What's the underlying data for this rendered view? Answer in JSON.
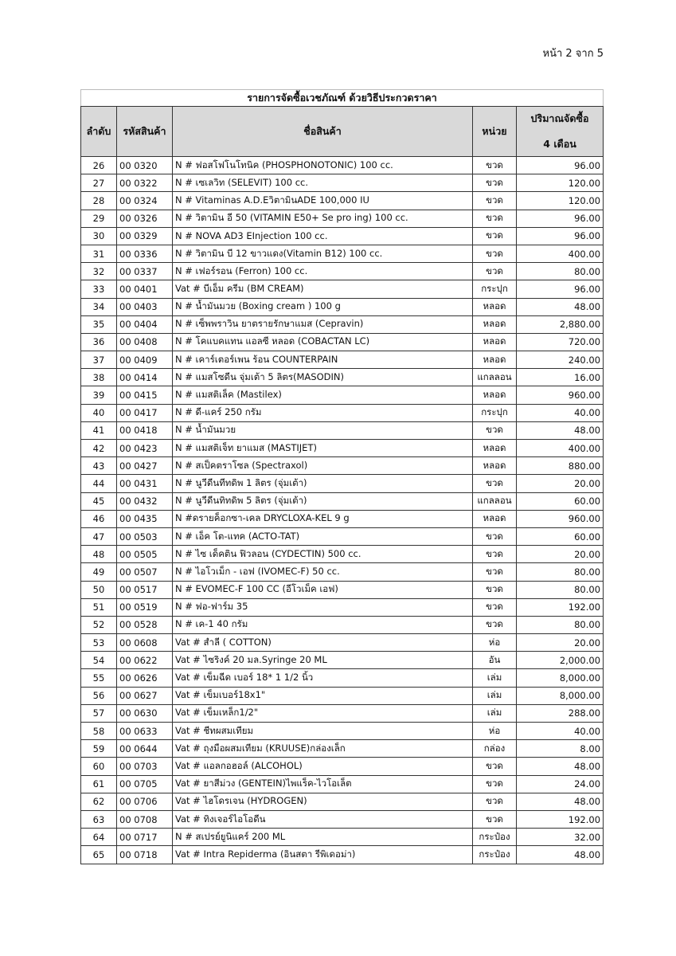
{
  "page_number": "หน้า 2 จาก 5",
  "table_title": "รายการจัดซื้อเวชภัณฑ์ ด้วยวิธีประกวดราคา",
  "headers": {
    "no": "ลำดับ",
    "code": "รหัสสินค้า",
    "name": "ชื่อสินค้า",
    "unit": "หน่วย",
    "qty_line1": "ปริมาณจัดซื้อ",
    "qty_line2": "4 เดือน"
  },
  "rows": [
    [
      "26",
      "00 0320",
      "N # ฟอสโฟโนโทนิค (PHOSPHONOTONIC) 100 cc.",
      "ขวด",
      "96.00"
    ],
    [
      "27",
      "00 0322",
      "N # เซเลวิท (SELEVIT) 100 cc.",
      "ขวด",
      "120.00"
    ],
    [
      "28",
      "00 0324",
      "N # Vitaminas A.D.EวิตามินADE 100,000 IU",
      "ขวด",
      "120.00"
    ],
    [
      "29",
      "00 0326",
      "N # วิตามิน อี 50 (VITAMIN E50+ Se pro ing) 100 cc.",
      "ขวด",
      "96.00"
    ],
    [
      "30",
      "00 0329",
      "N # NOVA AD3 EInjection 100 cc.",
      "ขวด",
      "96.00"
    ],
    [
      "31",
      "00 0336",
      "N # วิตามิน บี 12 ขาวแดง(Vitamin B12) 100 cc.",
      "ขวด",
      "400.00"
    ],
    [
      "32",
      "00 0337",
      "N # เฟอร์รอน (Ferron) 100 cc.",
      "ขวด",
      "80.00"
    ],
    [
      "33",
      "00 0401",
      "Vat # บีเอ็ม ครีม (BM CREAM)",
      "กระปุก",
      "96.00"
    ],
    [
      "34",
      "00 0403",
      "N # น้ำมันมวย (Boxing cream ) 100 g",
      "หลอด",
      "48.00"
    ],
    [
      "35",
      "00 0404",
      "N # เซ็พพราวิน ยาตรายรักษาแมส (Cepravin)",
      "หลอด",
      "2,880.00"
    ],
    [
      "36",
      "00 0408",
      "N # โคแบคแทน แอลซี หลอด (COBACTAN LC)",
      "หลอด",
      "720.00"
    ],
    [
      "37",
      "00 0409",
      "N # เคาร์เตอร์เพน ร้อน COUNTERPAIN",
      "หลอด",
      "240.00"
    ],
    [
      "38",
      "00 0414",
      "N # แมสโซดีน จุ่มเต้า 5 ลิตร(MASODIN)",
      "แกลลอน",
      "16.00"
    ],
    [
      "39",
      "00 0415",
      "N # แมสติเล็ค (Mastilex)",
      "หลอด",
      "960.00"
    ],
    [
      "40",
      "00 0417",
      "N # ดี-แคร์ 250 กรัม",
      "กระปุก",
      "40.00"
    ],
    [
      "41",
      "00 0418",
      "N # น้ำมันมวย",
      "ขวด",
      "48.00"
    ],
    [
      "42",
      "00 0423",
      "N # แมสติเจ็ท ยาแมส (MASTIJET)",
      "หลอด",
      "400.00"
    ],
    [
      "43",
      "00 0427",
      "N # สเป็คตราโซล (Spectraxol)",
      "หลอด",
      "880.00"
    ],
    [
      "44",
      "00 0431",
      "N # นูวีดีนทีทดิพ 1 ลิตร (จุ่มเต้า)",
      "ขวด",
      "20.00"
    ],
    [
      "45",
      "00 0432",
      "N # นูวีดีนทิทดิพ 5 ลิตร (จุ่มเต้า)",
      "แกลลอน",
      "60.00"
    ],
    [
      "46",
      "00 0435",
      "N #ดรายค็อกซา-เคล DRYCLOXA-KEL 9 g",
      "หลอด",
      "960.00"
    ],
    [
      "47",
      "00 0503",
      "N # เอ็ค โต-แทค (ACTO-TAT)",
      "ขวด",
      "60.00"
    ],
    [
      "48",
      "00 0505",
      "N # ไซ เด็คติน ฟิวลอน  (CYDECTIN) 500 cc.",
      "ขวด",
      "20.00"
    ],
    [
      "49",
      "00 0507",
      "N # ไอโวเม็ก - เอฟ (IVOMEC-F)  50 cc.",
      "ขวด",
      "80.00"
    ],
    [
      "50",
      "00 0517",
      "N # EVOMEC-F 100 CC (อีโวเม็ค เอฟ)",
      "ขวด",
      "80.00"
    ],
    [
      "51",
      "00 0519",
      "N # ฟอ-ฟาร์ม 35",
      "ขวด",
      "192.00"
    ],
    [
      "52",
      "00 0528",
      "N # เค-1 40 กรัม",
      "ขวด",
      "80.00"
    ],
    [
      "53",
      "00 0608",
      "Vat # สำลี ( COTTON)",
      "ห่อ",
      "20.00"
    ],
    [
      "54",
      "00 0622",
      "Vat # ไซริงค์ 20 มล.Syringe 20 ML",
      "อัน",
      "2,000.00"
    ],
    [
      "55",
      "00 0626",
      "Vat # เข็มฉีด เบอร์ 18* 1  1/2 นิ้ว",
      "เล่ม",
      "8,000.00"
    ],
    [
      "56",
      "00 0627",
      "Vat # เข็มเบอร์18x1\"",
      "เล่ม",
      "8,000.00"
    ],
    [
      "57",
      "00 0630",
      "Vat # เข็มเหล็ก1/2\"",
      "เล่ม",
      "288.00"
    ],
    [
      "58",
      "00 0633",
      "Vat # ชีทผสมเทียม",
      "ห่อ",
      "40.00"
    ],
    [
      "59",
      "00 0644",
      "Vat # ถุงมือผสมเทียม (KRUUSE)กล่องเล็ก",
      "กล่อง",
      "8.00"
    ],
    [
      "60",
      "00 0703",
      "Vat # แอลกอฮอล์ (ALCOHOL)",
      "ขวด",
      "48.00"
    ],
    [
      "61",
      "00 0705",
      "Vat # ยาสีม่วง (GENTEIN)ไพแร็ค-ไวโอเล็ต",
      "ขวด",
      "24.00"
    ],
    [
      "62",
      "00 0706",
      "Vat # ไฮโดรเจน (HYDROGEN)",
      "ขวด",
      "48.00"
    ],
    [
      "63",
      "00 0708",
      "Vat # ทิงเจอร์ไอโอดีน",
      "ขวด",
      "192.00"
    ],
    [
      "64",
      "00 0717",
      "N # สเปรย์ยูนิแคร์ 200 ML",
      "กระป๋อง",
      "32.00"
    ],
    [
      "65",
      "00 0718",
      "Vat # Intra Repiderma (อินสตา รีพิเดอม่า)",
      "กระป๋อง",
      "48.00"
    ]
  ]
}
